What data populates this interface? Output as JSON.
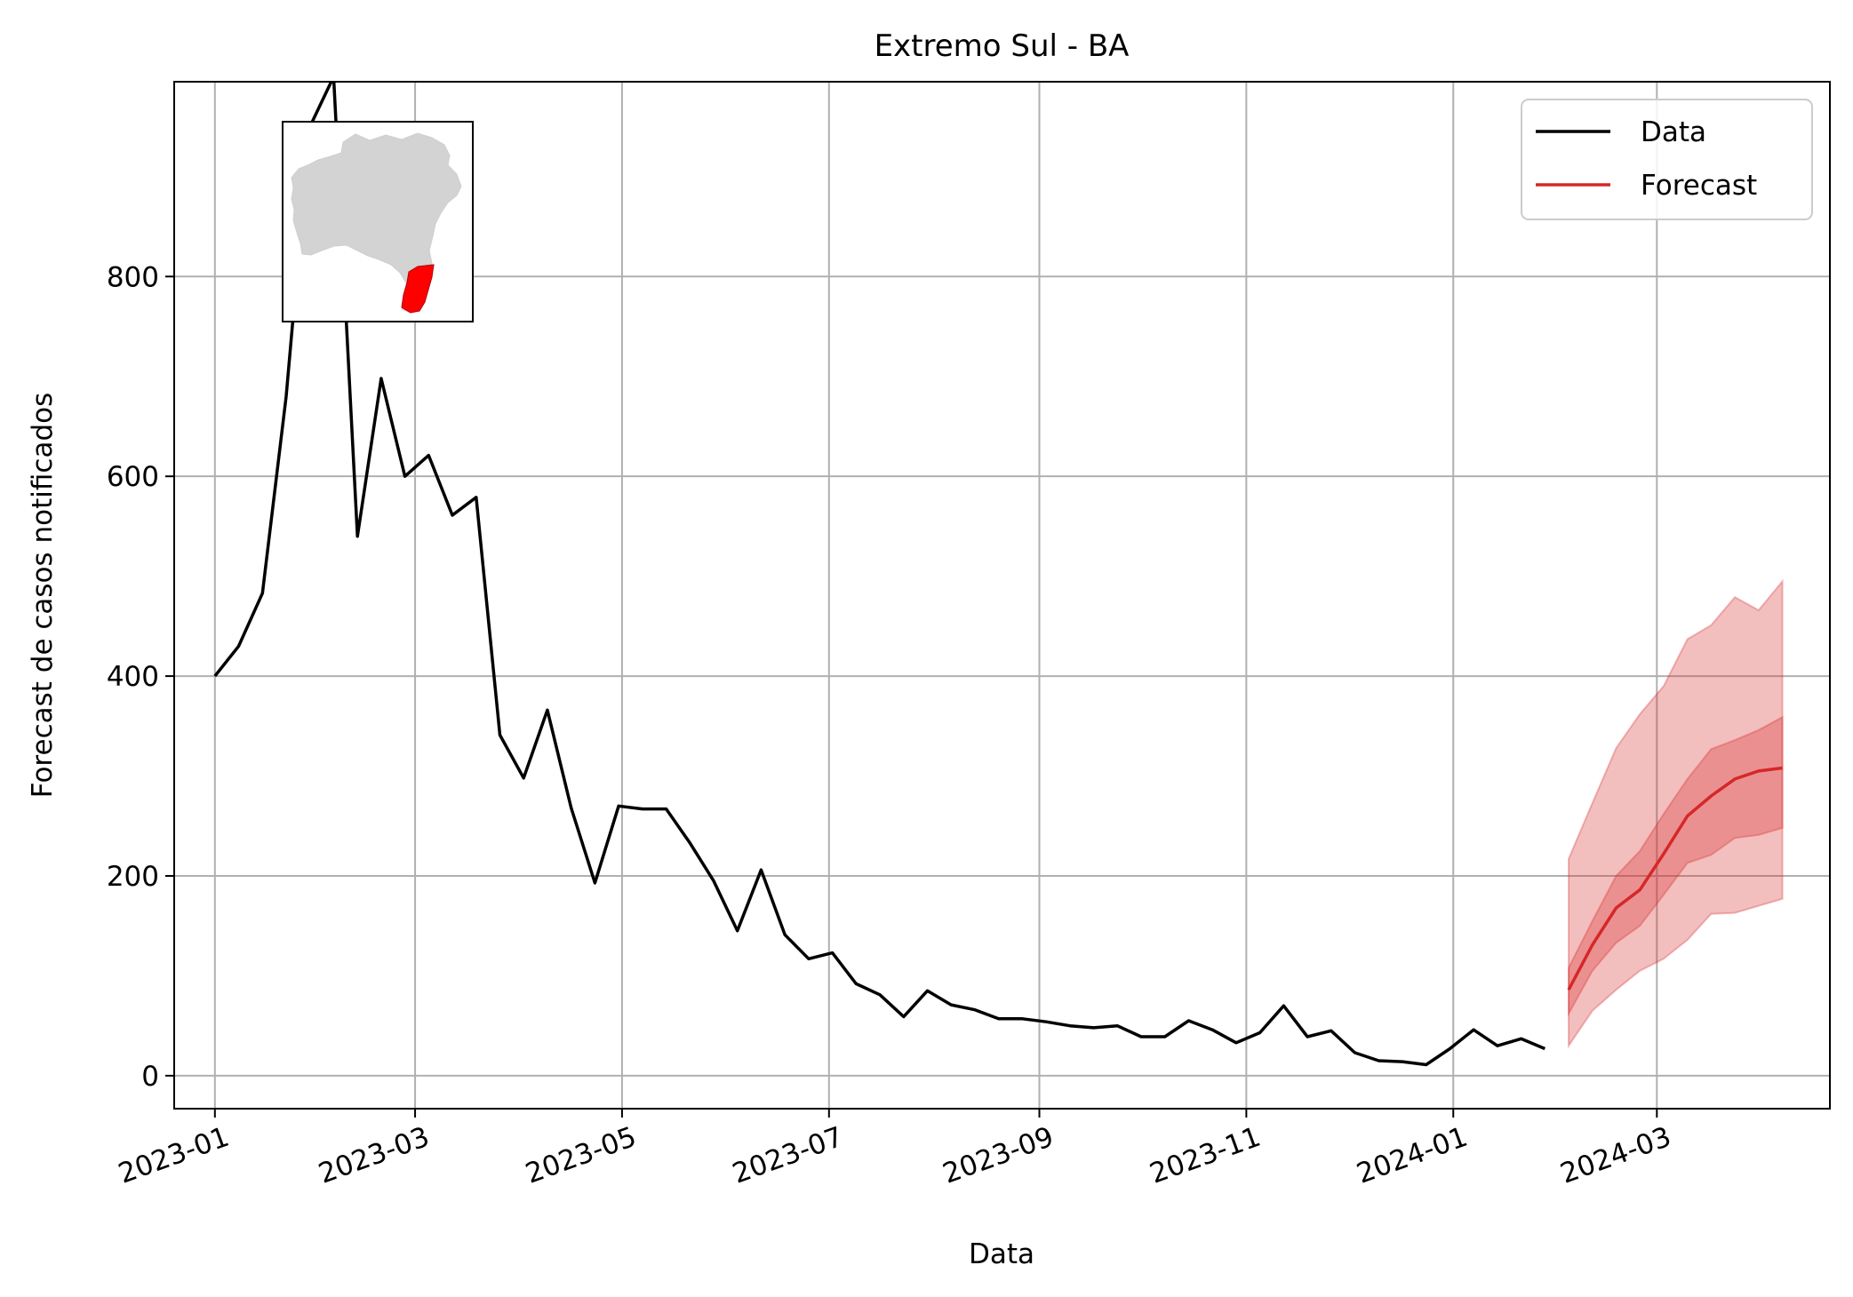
{
  "chart_data": {
    "type": "line",
    "title": "Extremo Sul - BA",
    "xlabel": "Data",
    "ylabel": "Forecast de casos notificados",
    "x_axis_type": "date",
    "xlim": [
      "2022-12-20",
      "2024-04-21"
    ],
    "ylim": [
      -33,
      995
    ],
    "grid": true,
    "legend_position": "top-right",
    "x_ticks": [
      "2023-01-01",
      "2023-03-01",
      "2023-05-01",
      "2023-07-01",
      "2023-09-01",
      "2023-11-01",
      "2024-01-01",
      "2024-03-01"
    ],
    "x_tick_labels": [
      "2023-01",
      "2023-03",
      "2023-05",
      "2023-07",
      "2023-09",
      "2023-11",
      "2024-01",
      "2024-03"
    ],
    "y_ticks": [
      0,
      200,
      400,
      600,
      800
    ],
    "y_tick_labels": [
      "0",
      "200",
      "400",
      "600",
      "800"
    ],
    "series": [
      {
        "name": "Data",
        "color": "#000000",
        "points": [
          [
            "2023-01-01",
            400
          ],
          [
            "2023-01-08",
            430
          ],
          [
            "2023-01-15",
            483
          ],
          [
            "2023-01-22",
            680
          ],
          [
            "2023-01-29",
            950
          ],
          [
            "2023-02-05",
            1000
          ],
          [
            "2023-02-12",
            540
          ],
          [
            "2023-02-19",
            698
          ],
          [
            "2023-02-26",
            600
          ],
          [
            "2023-03-05",
            621
          ],
          [
            "2023-03-12",
            561
          ],
          [
            "2023-03-19",
            579
          ],
          [
            "2023-03-26",
            341
          ],
          [
            "2023-04-02",
            298
          ],
          [
            "2023-04-09",
            366
          ],
          [
            "2023-04-16",
            268
          ],
          [
            "2023-04-23",
            193
          ],
          [
            "2023-04-30",
            270
          ],
          [
            "2023-05-07",
            267
          ],
          [
            "2023-05-14",
            267
          ],
          [
            "2023-05-21",
            233
          ],
          [
            "2023-05-28",
            195
          ],
          [
            "2023-06-04",
            145
          ],
          [
            "2023-06-11",
            206
          ],
          [
            "2023-06-18",
            141
          ],
          [
            "2023-06-25",
            117
          ],
          [
            "2023-07-02",
            123
          ],
          [
            "2023-07-09",
            92
          ],
          [
            "2023-07-16",
            81
          ],
          [
            "2023-07-23",
            59
          ],
          [
            "2023-07-30",
            85
          ],
          [
            "2023-08-06",
            71
          ],
          [
            "2023-08-13",
            66
          ],
          [
            "2023-08-20",
            57
          ],
          [
            "2023-08-27",
            57
          ],
          [
            "2023-09-03",
            54
          ],
          [
            "2023-09-10",
            50
          ],
          [
            "2023-09-17",
            48
          ],
          [
            "2023-09-24",
            50
          ],
          [
            "2023-10-01",
            39
          ],
          [
            "2023-10-08",
            39
          ],
          [
            "2023-10-15",
            55
          ],
          [
            "2023-10-22",
            46
          ],
          [
            "2023-10-29",
            33
          ],
          [
            "2023-11-05",
            43
          ],
          [
            "2023-11-12",
            70
          ],
          [
            "2023-11-19",
            39
          ],
          [
            "2023-11-26",
            45
          ],
          [
            "2023-12-03",
            23
          ],
          [
            "2023-12-10",
            15
          ],
          [
            "2023-12-17",
            14
          ],
          [
            "2023-12-24",
            11
          ],
          [
            "2023-12-31",
            27
          ],
          [
            "2024-01-07",
            46
          ],
          [
            "2024-01-14",
            30
          ],
          [
            "2024-01-21",
            37
          ],
          [
            "2024-01-28",
            27
          ]
        ]
      },
      {
        "name": "Forecast",
        "color": "#d62728",
        "points": [
          [
            "2024-02-04",
            86
          ],
          [
            "2024-02-11",
            131
          ],
          [
            "2024-02-18",
            168
          ],
          [
            "2024-02-25",
            186
          ],
          [
            "2024-03-03",
            222
          ],
          [
            "2024-03-10",
            260
          ],
          [
            "2024-03-17",
            280
          ],
          [
            "2024-03-24",
            297
          ],
          [
            "2024-03-31",
            305
          ],
          [
            "2024-04-07",
            308
          ]
        ],
        "intervals": [
          {
            "lower": [
              62,
              105,
              133,
              150,
              181,
              213,
              221,
              238,
              241,
              248
            ],
            "upper": [
              108,
              155,
              200,
              225,
              262,
              297,
              327,
              336,
              346,
              359
            ]
          },
          {
            "lower": [
              30,
              65,
              86,
              105,
              117,
              136,
              162,
              163,
              170,
              177
            ],
            "upper": [
              217,
              273,
              328,
              362,
              390,
              437,
              451,
              479,
              466,
              495
            ]
          }
        ]
      }
    ]
  },
  "inset": {
    "map_fill_color": "#d3d3d3",
    "highlight_color": "#ff0000"
  }
}
